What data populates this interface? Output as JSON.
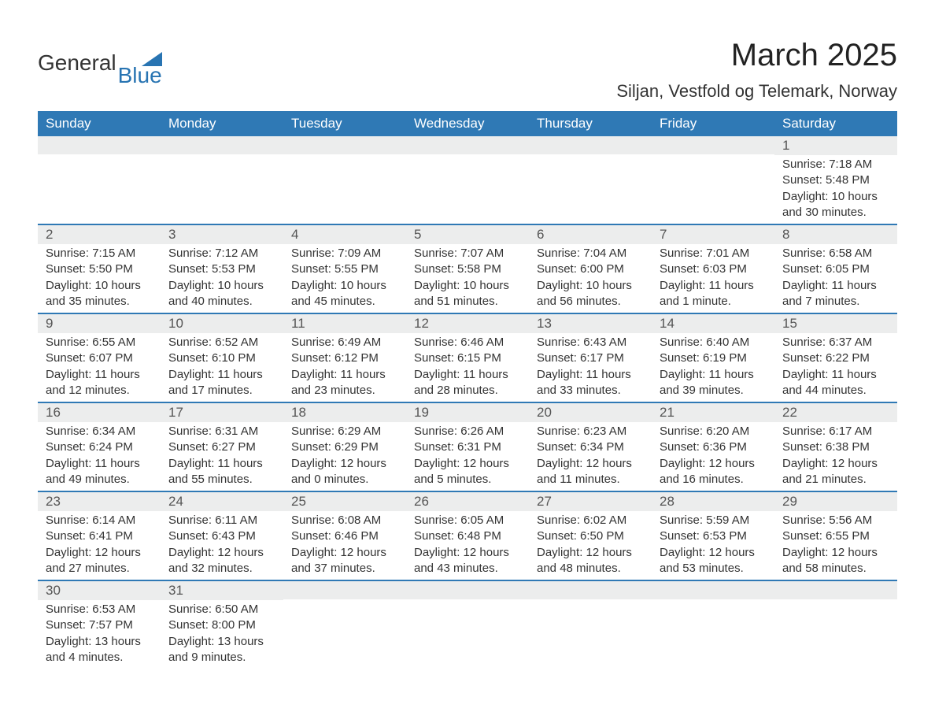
{
  "brand": {
    "word1": "General",
    "word2": "Blue",
    "accent_color": "#2874b2"
  },
  "header": {
    "title": "March 2025",
    "location": "Siljan, Vestfold og Telemark, Norway"
  },
  "colors": {
    "header_bg": "#2f79b5",
    "header_text": "#ffffff",
    "band_bg": "#eceded",
    "row_border": "#2f79b5",
    "body_text": "#333333",
    "page_bg": "#ffffff"
  },
  "typography": {
    "title_fontsize": 40,
    "location_fontsize": 22,
    "weekday_fontsize": 17,
    "daynum_fontsize": 17,
    "body_fontsize": 15,
    "font_family": "Arial"
  },
  "calendar": {
    "type": "table",
    "columns": [
      "Sunday",
      "Monday",
      "Tuesday",
      "Wednesday",
      "Thursday",
      "Friday",
      "Saturday"
    ],
    "weeks": [
      [
        {
          "n": "",
          "sunrise": "",
          "sunset": "",
          "daylight": ""
        },
        {
          "n": "",
          "sunrise": "",
          "sunset": "",
          "daylight": ""
        },
        {
          "n": "",
          "sunrise": "",
          "sunset": "",
          "daylight": ""
        },
        {
          "n": "",
          "sunrise": "",
          "sunset": "",
          "daylight": ""
        },
        {
          "n": "",
          "sunrise": "",
          "sunset": "",
          "daylight": ""
        },
        {
          "n": "",
          "sunrise": "",
          "sunset": "",
          "daylight": ""
        },
        {
          "n": "1",
          "sunrise": "Sunrise: 7:18 AM",
          "sunset": "Sunset: 5:48 PM",
          "daylight": "Daylight: 10 hours and 30 minutes."
        }
      ],
      [
        {
          "n": "2",
          "sunrise": "Sunrise: 7:15 AM",
          "sunset": "Sunset: 5:50 PM",
          "daylight": "Daylight: 10 hours and 35 minutes."
        },
        {
          "n": "3",
          "sunrise": "Sunrise: 7:12 AM",
          "sunset": "Sunset: 5:53 PM",
          "daylight": "Daylight: 10 hours and 40 minutes."
        },
        {
          "n": "4",
          "sunrise": "Sunrise: 7:09 AM",
          "sunset": "Sunset: 5:55 PM",
          "daylight": "Daylight: 10 hours and 45 minutes."
        },
        {
          "n": "5",
          "sunrise": "Sunrise: 7:07 AM",
          "sunset": "Sunset: 5:58 PM",
          "daylight": "Daylight: 10 hours and 51 minutes."
        },
        {
          "n": "6",
          "sunrise": "Sunrise: 7:04 AM",
          "sunset": "Sunset: 6:00 PM",
          "daylight": "Daylight: 10 hours and 56 minutes."
        },
        {
          "n": "7",
          "sunrise": "Sunrise: 7:01 AM",
          "sunset": "Sunset: 6:03 PM",
          "daylight": "Daylight: 11 hours and 1 minute."
        },
        {
          "n": "8",
          "sunrise": "Sunrise: 6:58 AM",
          "sunset": "Sunset: 6:05 PM",
          "daylight": "Daylight: 11 hours and 7 minutes."
        }
      ],
      [
        {
          "n": "9",
          "sunrise": "Sunrise: 6:55 AM",
          "sunset": "Sunset: 6:07 PM",
          "daylight": "Daylight: 11 hours and 12 minutes."
        },
        {
          "n": "10",
          "sunrise": "Sunrise: 6:52 AM",
          "sunset": "Sunset: 6:10 PM",
          "daylight": "Daylight: 11 hours and 17 minutes."
        },
        {
          "n": "11",
          "sunrise": "Sunrise: 6:49 AM",
          "sunset": "Sunset: 6:12 PM",
          "daylight": "Daylight: 11 hours and 23 minutes."
        },
        {
          "n": "12",
          "sunrise": "Sunrise: 6:46 AM",
          "sunset": "Sunset: 6:15 PM",
          "daylight": "Daylight: 11 hours and 28 minutes."
        },
        {
          "n": "13",
          "sunrise": "Sunrise: 6:43 AM",
          "sunset": "Sunset: 6:17 PM",
          "daylight": "Daylight: 11 hours and 33 minutes."
        },
        {
          "n": "14",
          "sunrise": "Sunrise: 6:40 AM",
          "sunset": "Sunset: 6:19 PM",
          "daylight": "Daylight: 11 hours and 39 minutes."
        },
        {
          "n": "15",
          "sunrise": "Sunrise: 6:37 AM",
          "sunset": "Sunset: 6:22 PM",
          "daylight": "Daylight: 11 hours and 44 minutes."
        }
      ],
      [
        {
          "n": "16",
          "sunrise": "Sunrise: 6:34 AM",
          "sunset": "Sunset: 6:24 PM",
          "daylight": "Daylight: 11 hours and 49 minutes."
        },
        {
          "n": "17",
          "sunrise": "Sunrise: 6:31 AM",
          "sunset": "Sunset: 6:27 PM",
          "daylight": "Daylight: 11 hours and 55 minutes."
        },
        {
          "n": "18",
          "sunrise": "Sunrise: 6:29 AM",
          "sunset": "Sunset: 6:29 PM",
          "daylight": "Daylight: 12 hours and 0 minutes."
        },
        {
          "n": "19",
          "sunrise": "Sunrise: 6:26 AM",
          "sunset": "Sunset: 6:31 PM",
          "daylight": "Daylight: 12 hours and 5 minutes."
        },
        {
          "n": "20",
          "sunrise": "Sunrise: 6:23 AM",
          "sunset": "Sunset: 6:34 PM",
          "daylight": "Daylight: 12 hours and 11 minutes."
        },
        {
          "n": "21",
          "sunrise": "Sunrise: 6:20 AM",
          "sunset": "Sunset: 6:36 PM",
          "daylight": "Daylight: 12 hours and 16 minutes."
        },
        {
          "n": "22",
          "sunrise": "Sunrise: 6:17 AM",
          "sunset": "Sunset: 6:38 PM",
          "daylight": "Daylight: 12 hours and 21 minutes."
        }
      ],
      [
        {
          "n": "23",
          "sunrise": "Sunrise: 6:14 AM",
          "sunset": "Sunset: 6:41 PM",
          "daylight": "Daylight: 12 hours and 27 minutes."
        },
        {
          "n": "24",
          "sunrise": "Sunrise: 6:11 AM",
          "sunset": "Sunset: 6:43 PM",
          "daylight": "Daylight: 12 hours and 32 minutes."
        },
        {
          "n": "25",
          "sunrise": "Sunrise: 6:08 AM",
          "sunset": "Sunset: 6:46 PM",
          "daylight": "Daylight: 12 hours and 37 minutes."
        },
        {
          "n": "26",
          "sunrise": "Sunrise: 6:05 AM",
          "sunset": "Sunset: 6:48 PM",
          "daylight": "Daylight: 12 hours and 43 minutes."
        },
        {
          "n": "27",
          "sunrise": "Sunrise: 6:02 AM",
          "sunset": "Sunset: 6:50 PM",
          "daylight": "Daylight: 12 hours and 48 minutes."
        },
        {
          "n": "28",
          "sunrise": "Sunrise: 5:59 AM",
          "sunset": "Sunset: 6:53 PM",
          "daylight": "Daylight: 12 hours and 53 minutes."
        },
        {
          "n": "29",
          "sunrise": "Sunrise: 5:56 AM",
          "sunset": "Sunset: 6:55 PM",
          "daylight": "Daylight: 12 hours and 58 minutes."
        }
      ],
      [
        {
          "n": "30",
          "sunrise": "Sunrise: 6:53 AM",
          "sunset": "Sunset: 7:57 PM",
          "daylight": "Daylight: 13 hours and 4 minutes."
        },
        {
          "n": "31",
          "sunrise": "Sunrise: 6:50 AM",
          "sunset": "Sunset: 8:00 PM",
          "daylight": "Daylight: 13 hours and 9 minutes."
        },
        {
          "n": "",
          "sunrise": "",
          "sunset": "",
          "daylight": ""
        },
        {
          "n": "",
          "sunrise": "",
          "sunset": "",
          "daylight": ""
        },
        {
          "n": "",
          "sunrise": "",
          "sunset": "",
          "daylight": ""
        },
        {
          "n": "",
          "sunrise": "",
          "sunset": "",
          "daylight": ""
        },
        {
          "n": "",
          "sunrise": "",
          "sunset": "",
          "daylight": ""
        }
      ]
    ]
  }
}
